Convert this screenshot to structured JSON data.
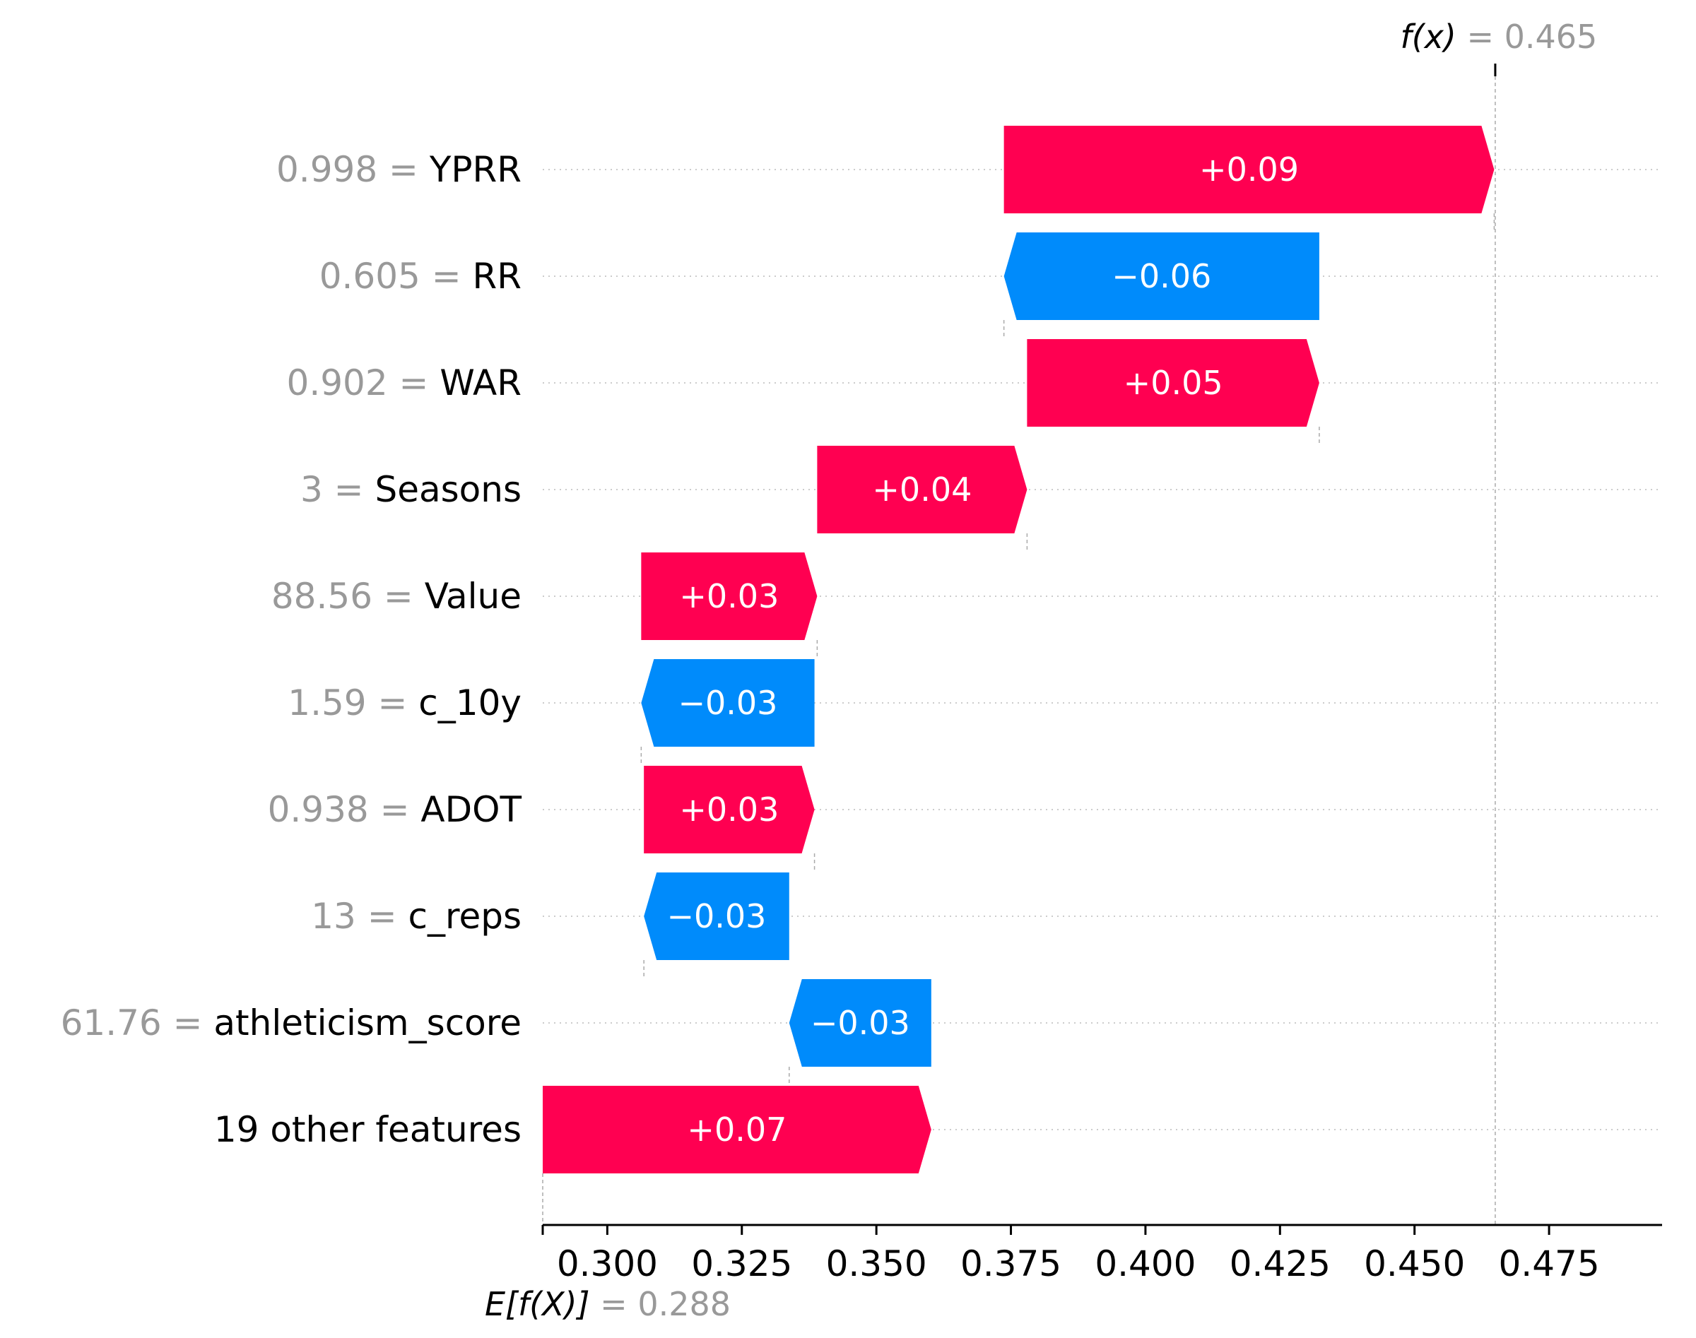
{
  "chart_data": {
    "type": "waterfall",
    "base_value": 0.288,
    "base_label": "E[f(X)] = 0.288",
    "output_value": 0.465,
    "output_label": "f(x) = 0.465",
    "xlim": [
      0.288,
      0.496
    ],
    "xticks": [
      0.3,
      0.325,
      0.35,
      0.375,
      0.4,
      0.425,
      0.45,
      0.475
    ],
    "xtick_labels": [
      "0.300",
      "0.325",
      "0.350",
      "0.375",
      "0.400",
      "0.425",
      "0.450",
      "0.475"
    ],
    "features": [
      {
        "value_text": "0.998 =",
        "name": "YPRR",
        "start": 0.3737,
        "end": 0.4648,
        "label": "+0.09"
      },
      {
        "value_text": "0.605 =",
        "name": "RR",
        "start": 0.4323,
        "end": 0.3737,
        "label": "−0.06"
      },
      {
        "value_text": "0.902 =",
        "name": "WAR",
        "start": 0.378,
        "end": 0.4323,
        "label": "+0.05"
      },
      {
        "value_text": "3 =",
        "name": "Seasons",
        "start": 0.339,
        "end": 0.378,
        "label": "+0.04"
      },
      {
        "value_text": "88.56 =",
        "name": "Value",
        "start": 0.3063,
        "end": 0.339,
        "label": "+0.03"
      },
      {
        "value_text": "1.59 =",
        "name": "c_10y",
        "start": 0.3385,
        "end": 0.3063,
        "label": "−0.03"
      },
      {
        "value_text": "0.938 =",
        "name": "ADOT",
        "start": 0.3068,
        "end": 0.3385,
        "label": "+0.03"
      },
      {
        "value_text": "13 =",
        "name": "c_reps",
        "start": 0.3338,
        "end": 0.3068,
        "label": "−0.03"
      },
      {
        "value_text": "61.76 =",
        "name": "athleticism_score",
        "start": 0.3602,
        "end": 0.3338,
        "label": "−0.03"
      },
      {
        "value_text": "",
        "name": "19 other features",
        "start": 0.288,
        "end": 0.3602,
        "label": "+0.07"
      }
    ],
    "colors": {
      "positive": "#ff0051",
      "negative": "#008bfb",
      "value_text": "#999999",
      "name_text": "#000000",
      "grid": "#cccccc",
      "bar_label": "#ffffff"
    }
  }
}
